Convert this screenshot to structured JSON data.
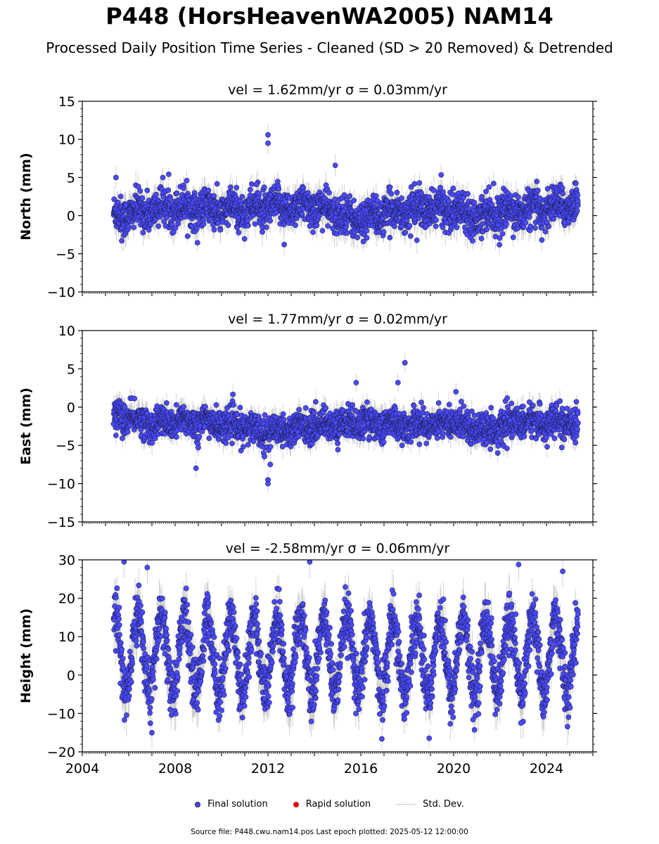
{
  "title": "P448 (HorsHeavenWA2005) NAM14",
  "subtitle": "Processed Daily Position Time Series - Cleaned (SD > 20 Removed) & Detrended",
  "legend": {
    "final": "Final solution",
    "rapid": "Rapid solution",
    "std": "Std. Dev."
  },
  "footer": "Source file: P448.cwu.nam14.pos  Last epoch plotted: 2025-05-12 12:00:00",
  "colors": {
    "final": "#4a4aff",
    "rapid": "#e01010",
    "std": "#c8c8c8"
  },
  "chart_data": [
    {
      "type": "scatter",
      "title": "vel = 1.62mm/yr   σ = 0.03mm/yr",
      "ylabel": "North (mm)",
      "xlim": [
        2004,
        2026
      ],
      "ylim": [
        -10,
        15
      ],
      "yticks": [
        -10,
        -5,
        0,
        5,
        10,
        15
      ],
      "data_range": [
        2005.35,
        2025.36
      ],
      "mean_trend": [
        [
          2005.4,
          0.0
        ],
        [
          2008.0,
          1.2
        ],
        [
          2010.0,
          0.6
        ],
        [
          2012.0,
          1.0
        ],
        [
          2014.0,
          1.3
        ],
        [
          2015.9,
          -0.6
        ],
        [
          2017.5,
          0.6
        ],
        [
          2019.5,
          1.0
        ],
        [
          2021.0,
          0.2
        ],
        [
          2023.0,
          0.6
        ],
        [
          2025.3,
          1.6
        ]
      ],
      "scatter_sd": 1.2,
      "annual_amp": 0.5,
      "outliers": [
        [
          2005.45,
          5.0
        ],
        [
          2005.7,
          -3.3
        ],
        [
          2008.5,
          4.6
        ],
        [
          2012.0,
          10.6
        ],
        [
          2012.0,
          9.5
        ],
        [
          2011.5,
          4.1
        ],
        [
          2012.7,
          -3.8
        ],
        [
          2014.9,
          6.6
        ],
        [
          2021.2,
          -3.0
        ],
        [
          2023.8,
          -3.2
        ]
      ]
    },
    {
      "type": "scatter",
      "title": "vel = 1.77mm/yr   σ = 0.02mm/yr",
      "ylabel": "East (mm)",
      "xlim": [
        2004,
        2026
      ],
      "ylim": [
        -15,
        10
      ],
      "yticks": [
        -15,
        -10,
        -5,
        0,
        5,
        10
      ],
      "data_range": [
        2005.35,
        2025.36
      ],
      "mean_trend": [
        [
          2005.4,
          -1.0
        ],
        [
          2007.0,
          -2.2
        ],
        [
          2009.0,
          -1.8
        ],
        [
          2012.0,
          -3.2
        ],
        [
          2014.0,
          -2.4
        ],
        [
          2016.0,
          -2.0
        ],
        [
          2018.0,
          -2.4
        ],
        [
          2020.0,
          -2.0
        ],
        [
          2021.5,
          -3.0
        ],
        [
          2023.0,
          -1.8
        ],
        [
          2025.3,
          -2.4
        ]
      ],
      "scatter_sd": 1.0,
      "annual_amp": 0.4,
      "outliers": [
        [
          2005.45,
          -3.7
        ],
        [
          2008.9,
          -8.0
        ],
        [
          2009.0,
          -5.3
        ],
        [
          2012.0,
          -9.5
        ],
        [
          2012.0,
          -10.0
        ],
        [
          2012.1,
          -7.5
        ],
        [
          2015.8,
          3.2
        ],
        [
          2017.6,
          3.2
        ],
        [
          2017.9,
          5.8
        ],
        [
          2020.1,
          2.0
        ],
        [
          2021.9,
          -6.0
        ],
        [
          2022.3,
          -5.4
        ]
      ]
    },
    {
      "type": "scatter",
      "title": "vel = -2.58mm/yr   σ = 0.06mm/yr",
      "ylabel": "Height (mm)",
      "xlim": [
        2004,
        2026
      ],
      "ylim": [
        -20,
        30
      ],
      "yticks": [
        -20,
        -10,
        0,
        10,
        20,
        30
      ],
      "xticks": [
        2004,
        2008,
        2012,
        2016,
        2020,
        2024
      ],
      "data_range": [
        2005.35,
        2025.36
      ],
      "mean_trend": [
        [
          2005.4,
          6.0
        ],
        [
          2010.0,
          5.0
        ],
        [
          2015.0,
          5.0
        ],
        [
          2020.0,
          5.0
        ],
        [
          2025.3,
          5.0
        ]
      ],
      "scatter_sd": 3.5,
      "annual_amp": 10.0,
      "outliers": [
        [
          2005.8,
          29.5
        ],
        [
          2006.8,
          28.0
        ],
        [
          2007.0,
          -15.0
        ],
        [
          2013.8,
          29.5
        ],
        [
          2022.8,
          28.8
        ],
        [
          2022.9,
          -12.5
        ],
        [
          2024.7,
          27.0
        ]
      ]
    }
  ]
}
